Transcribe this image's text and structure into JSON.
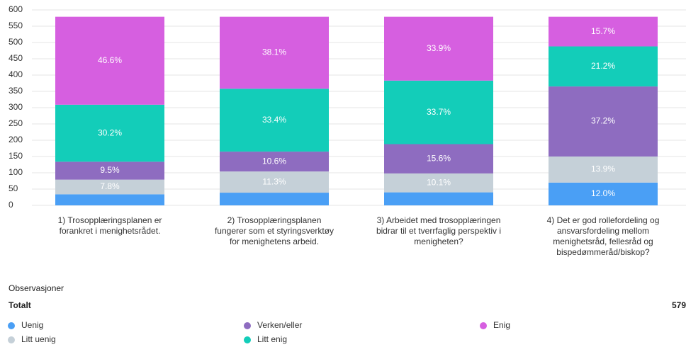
{
  "chart_data": {
    "type": "stacked_bar",
    "categories": [
      "1) Trosopplæringsplanen er forankret i menighetsrådet.",
      "2) Trosopplæringsplanen fungerer som et styringsverktøy for menighetens arbeid.",
      "3) Arbeidet med trosopplæringen bidrar til et tverrfaglig perspektiv i menigheten?",
      "4) Det er god rollefordeling og ansvarsfordeling mellom menighetsråd, fellesråd og bispedømmeråd/biskop?"
    ],
    "series": [
      {
        "name": "Uenig",
        "color": "#4a9ff5",
        "values": [
          34,
          39,
          40,
          70
        ],
        "value_labels": [
          null,
          null,
          null,
          "12.0%"
        ]
      },
      {
        "name": "Litt uenig",
        "color": "#c5d0d8",
        "values": [
          45,
          65,
          58,
          80
        ],
        "value_labels": [
          "7.8%",
          "11.3%",
          "10.1%",
          "13.9%"
        ]
      },
      {
        "name": "Verken/eller",
        "color": "#8e6cc0",
        "values": [
          55,
          61,
          90,
          215
        ],
        "value_labels": [
          "9.5%",
          "10.6%",
          "15.6%",
          "37.2%"
        ]
      },
      {
        "name": "Litt enig",
        "color": "#13cdb9",
        "values": [
          175,
          193,
          195,
          123
        ],
        "value_labels": [
          "30.2%",
          "33.4%",
          "33.7%",
          "21.2%"
        ]
      },
      {
        "name": "Enig",
        "color": "#d65fe0",
        "values": [
          270,
          221,
          196,
          91
        ],
        "value_labels": [
          "46.6%",
          "38.1%",
          "33.9%",
          "15.7%"
        ]
      }
    ],
    "ylim": [
      0,
      600
    ],
    "yticks": [
      0,
      50,
      100,
      150,
      200,
      250,
      300,
      350,
      400,
      450,
      500,
      550,
      600
    ],
    "grid": true
  },
  "observations_label": "Observasjoner",
  "total_label": "Totalt",
  "total_value": "579"
}
